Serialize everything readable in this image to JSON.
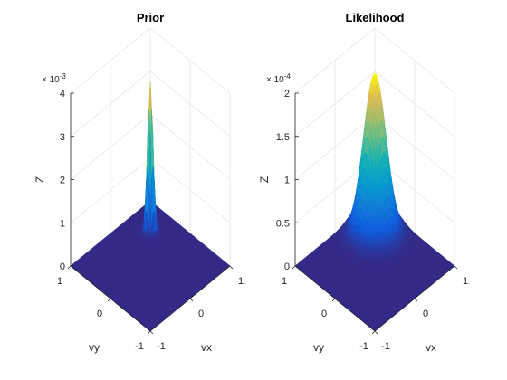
{
  "chart_data": [
    {
      "type": "surface",
      "title": "Prior",
      "xlabel": "vx",
      "ylabel": "vy",
      "zlabel": "Z",
      "xlim": [
        -1,
        1
      ],
      "ylim": [
        -1,
        1
      ],
      "zlim": [
        0,
        0.004
      ],
      "z_multiplier": {
        "prefix": "× 10",
        "exponent": "-3"
      },
      "x_ticks": [
        "-1",
        "0",
        "1"
      ],
      "y_ticks": [
        "-1",
        "0",
        "1"
      ],
      "z_ticks": [
        "0",
        "1",
        "2",
        "3",
        "4"
      ],
      "peak": {
        "vx": 0.5,
        "vy": 0.5,
        "z": 0.0035
      },
      "sigma": 0.05,
      "colormap": "parula",
      "grid": true
    },
    {
      "type": "surface",
      "title": "Likelihood",
      "xlabel": "vx",
      "ylabel": "vy",
      "zlabel": "Z",
      "xlim": [
        -1,
        1
      ],
      "ylim": [
        -1,
        1
      ],
      "zlim": [
        0,
        0.0002
      ],
      "z_multiplier": {
        "prefix": "× 10",
        "exponent": "-4"
      },
      "x_ticks": [
        "-1",
        "0",
        "1"
      ],
      "y_ticks": [
        "-1",
        "0",
        "1"
      ],
      "z_ticks": [
        "0",
        "0.5",
        "1",
        "1.5",
        "2"
      ],
      "peak": {
        "vx": 0.5,
        "vy": 0.5,
        "z": 0.000185
      },
      "sigma": 0.2,
      "colormap": "parula",
      "grid": true
    }
  ]
}
